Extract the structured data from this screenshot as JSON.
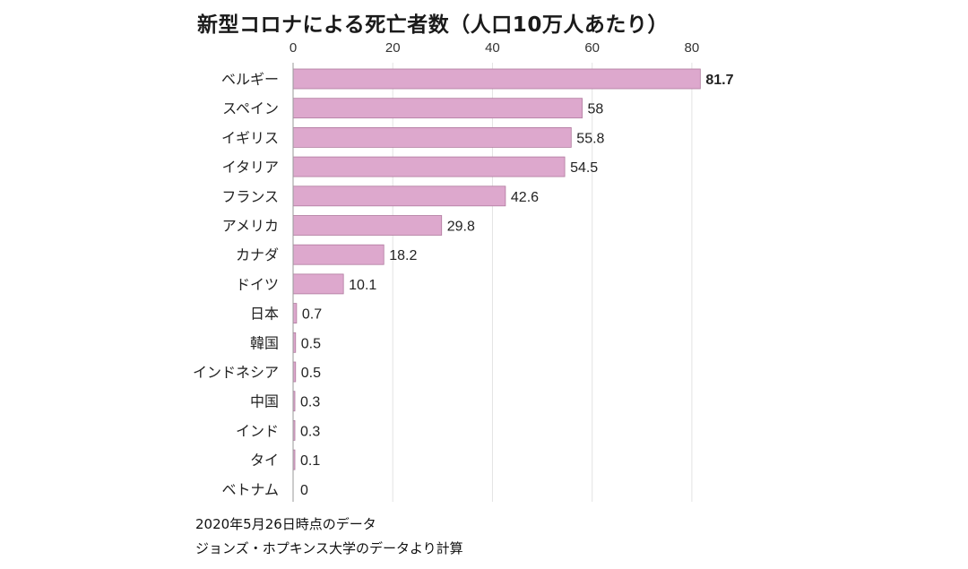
{
  "chart_data": {
    "type": "bar",
    "orientation": "horizontal",
    "title": "新型コロナによる死亡者数（人口10万人あたり）",
    "categories": [
      "ベルギー",
      "スペイン",
      "イギリス",
      "イタリア",
      "フランス",
      "アメリカ",
      "カナダ",
      "ドイツ",
      "日本",
      "韓国",
      "インドネシア",
      "中国",
      "インド",
      "タイ",
      "ベトナム"
    ],
    "values": [
      81.7,
      58,
      55.8,
      54.5,
      42.6,
      29.8,
      18.2,
      10.1,
      0.7,
      0.5,
      0.5,
      0.3,
      0.3,
      0.1,
      0
    ],
    "value_labels": [
      "81.7",
      "58",
      "55.8",
      "54.5",
      "42.6",
      "29.8",
      "18.2",
      "10.1",
      "0.7",
      "0.5",
      "0.5",
      "0.3",
      "0.3",
      "0.1",
      "0"
    ],
    "x_ticks": [
      0,
      20,
      40,
      60,
      80
    ],
    "xlim": [
      0,
      82
    ],
    "axis_position": "top",
    "grid": true,
    "bar_color": "#dda8cd",
    "bar_edge_color": "#b07a9e",
    "highlight_index": 0
  },
  "notes": {
    "date": "2020年5月26日時点のデータ",
    "source": "ジョンズ・ホプキンス大学のデータより計算"
  }
}
